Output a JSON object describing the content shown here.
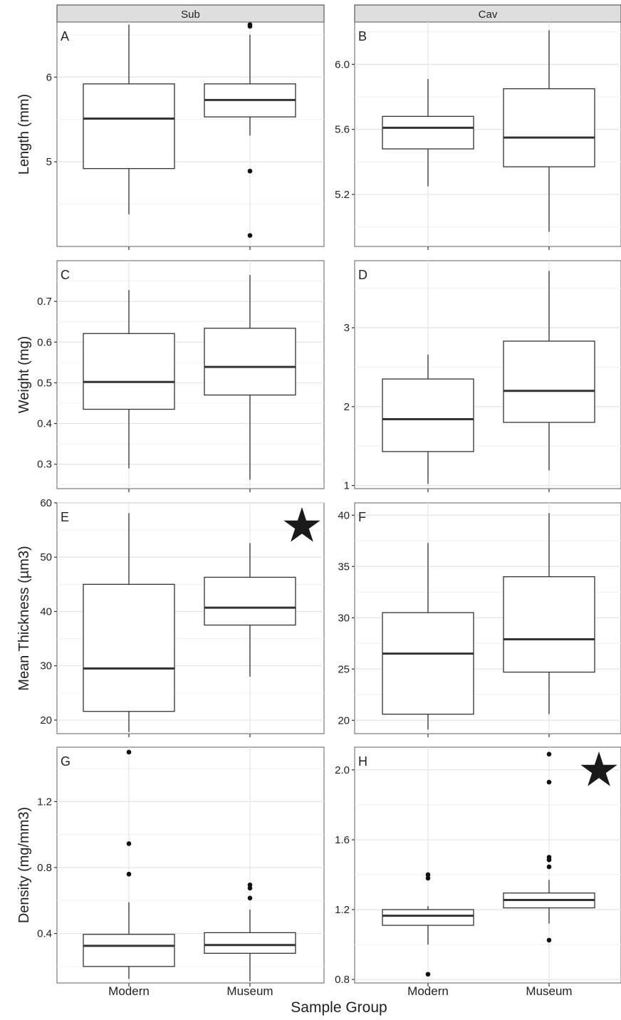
{
  "figure": {
    "strip_labels": [
      "Sub",
      "Cav"
    ],
    "x_axis_title": "Sample Group",
    "row_titles": [
      "Length (mm)",
      "Weight (mg)",
      "Mean Thickness (µm3)",
      "Density (mg/mm3)"
    ]
  },
  "chart_data": [
    {
      "type": "box",
      "panel_label": "A",
      "facet": "Sub",
      "ylabel": "Length (mm)",
      "categories": [
        "Modern",
        "Museum"
      ],
      "ylim": [
        4.0,
        6.65
      ],
      "yticks": [
        5,
        6
      ],
      "ytick_labels": [
        "5",
        "6"
      ],
      "boxes": [
        {
          "category": "Modern",
          "whisker_low": 4.38,
          "q1": 4.92,
          "median": 5.51,
          "q3": 5.92,
          "whisker_high": 6.62,
          "outliers": []
        },
        {
          "category": "Museum",
          "whisker_low": 5.31,
          "q1": 5.53,
          "median": 5.73,
          "q3": 5.92,
          "whisker_high": 6.5,
          "outliers": [
            6.62,
            6.6,
            4.89,
            4.13
          ]
        }
      ],
      "significance_marker": false
    },
    {
      "type": "box",
      "panel_label": "B",
      "facet": "Cav",
      "ylabel": "",
      "categories": [
        "Modern",
        "Museum"
      ],
      "ylim": [
        4.88,
        6.26
      ],
      "yticks": [
        5.2,
        5.6,
        6.0
      ],
      "ytick_labels": [
        "5.2",
        "5.6",
        "6.0"
      ],
      "boxes": [
        {
          "category": "Modern",
          "whisker_low": 5.25,
          "q1": 5.48,
          "median": 5.61,
          "q3": 5.68,
          "whisker_high": 5.91,
          "outliers": []
        },
        {
          "category": "Museum",
          "whisker_low": 4.97,
          "q1": 5.37,
          "median": 5.55,
          "q3": 5.85,
          "whisker_high": 6.21,
          "outliers": []
        }
      ],
      "significance_marker": false
    },
    {
      "type": "box",
      "panel_label": "C",
      "facet": "Sub",
      "ylabel": "Weight (mg)",
      "categories": [
        "Modern",
        "Museum"
      ],
      "ylim": [
        0.24,
        0.8
      ],
      "yticks": [
        0.3,
        0.4,
        0.5,
        0.6,
        0.7
      ],
      "ytick_labels": [
        "0.3",
        "0.4",
        "0.5",
        "0.6",
        "0.7"
      ],
      "boxes": [
        {
          "category": "Modern",
          "whisker_low": 0.29,
          "q1": 0.435,
          "median": 0.502,
          "q3": 0.621,
          "whisker_high": 0.728,
          "outliers": []
        },
        {
          "category": "Museum",
          "whisker_low": 0.262,
          "q1": 0.47,
          "median": 0.539,
          "q3": 0.634,
          "whisker_high": 0.765,
          "outliers": []
        }
      ],
      "significance_marker": false
    },
    {
      "type": "box",
      "panel_label": "D",
      "facet": "Cav",
      "ylabel": "",
      "categories": [
        "Modern",
        "Museum"
      ],
      "ylim": [
        0.96,
        3.85
      ],
      "yticks": [
        1,
        2,
        3
      ],
      "ytick_labels": [
        "1",
        "2",
        "3"
      ],
      "boxes": [
        {
          "category": "Modern",
          "whisker_low": 1.02,
          "q1": 1.43,
          "median": 1.84,
          "q3": 2.35,
          "whisker_high": 2.66,
          "outliers": []
        },
        {
          "category": "Museum",
          "whisker_low": 1.19,
          "q1": 1.8,
          "median": 2.2,
          "q3": 2.83,
          "whisker_high": 3.72,
          "outliers": []
        }
      ],
      "significance_marker": false
    },
    {
      "type": "box",
      "panel_label": "E",
      "facet": "Sub",
      "ylabel": "Mean Thickness (µm3)",
      "categories": [
        "Modern",
        "Museum"
      ],
      "ylim": [
        17.5,
        60
      ],
      "yticks": [
        20,
        30,
        40,
        50,
        60
      ],
      "ytick_labels": [
        "20",
        "30",
        "40",
        "50",
        "60"
      ],
      "boxes": [
        {
          "category": "Modern",
          "whisker_low": 17.8,
          "q1": 21.6,
          "median": 29.5,
          "q3": 45.0,
          "whisker_high": 58.1,
          "outliers": []
        },
        {
          "category": "Museum",
          "whisker_low": 28.0,
          "q1": 37.5,
          "median": 40.7,
          "q3": 46.3,
          "whisker_high": 52.6,
          "outliers": []
        }
      ],
      "significance_marker": true
    },
    {
      "type": "box",
      "panel_label": "F",
      "facet": "Cav",
      "ylabel": "",
      "categories": [
        "Modern",
        "Museum"
      ],
      "ylim": [
        18.7,
        41.2
      ],
      "yticks": [
        20,
        25,
        30,
        35,
        40
      ],
      "ytick_labels": [
        "20",
        "25",
        "30",
        "35",
        "40"
      ],
      "boxes": [
        {
          "category": "Modern",
          "whisker_low": 19.1,
          "q1": 20.6,
          "median": 26.5,
          "q3": 30.5,
          "whisker_high": 37.3,
          "outliers": []
        },
        {
          "category": "Museum",
          "whisker_low": 20.6,
          "q1": 24.7,
          "median": 27.9,
          "q3": 34.0,
          "whisker_high": 40.2,
          "outliers": []
        }
      ],
      "significance_marker": false
    },
    {
      "type": "box",
      "panel_label": "G",
      "facet": "Sub",
      "ylabel": "Density (mg/mm3)",
      "categories": [
        "Modern",
        "Museum"
      ],
      "ylim": [
        0.1,
        1.53
      ],
      "yticks": [
        0.4,
        0.8,
        1.2
      ],
      "ytick_labels": [
        "0.4",
        "0.8",
        "1.2"
      ],
      "boxes": [
        {
          "category": "Modern",
          "whisker_low": 0.125,
          "q1": 0.2,
          "median": 0.325,
          "q3": 0.395,
          "whisker_high": 0.59,
          "outliers": [
            1.5,
            0.945,
            0.76
          ]
        },
        {
          "category": "Museum",
          "whisker_low": 0.11,
          "q1": 0.28,
          "median": 0.33,
          "q3": 0.405,
          "whisker_high": 0.545,
          "outliers": [
            0.695,
            0.675,
            0.615
          ]
        }
      ],
      "significance_marker": false
    },
    {
      "type": "box",
      "panel_label": "H",
      "facet": "Cav",
      "ylabel": "",
      "categories": [
        "Modern",
        "Museum"
      ],
      "ylim": [
        0.78,
        2.13
      ],
      "yticks": [
        0.8,
        1.2,
        1.6,
        2.0
      ],
      "ytick_labels": [
        "0.8",
        "1.2",
        "1.6",
        "2.0"
      ],
      "boxes": [
        {
          "category": "Modern",
          "whisker_low": 1.0,
          "q1": 1.11,
          "median": 1.165,
          "q3": 1.2,
          "whisker_high": 1.22,
          "outliers": [
            1.4,
            1.38,
            0.83
          ]
        },
        {
          "category": "Museum",
          "whisker_low": 1.12,
          "q1": 1.21,
          "median": 1.255,
          "q3": 1.295,
          "whisker_high": 1.37,
          "outliers": [
            2.09,
            1.93,
            1.5,
            1.485,
            1.445,
            1.025
          ]
        }
      ],
      "significance_marker": true
    }
  ]
}
